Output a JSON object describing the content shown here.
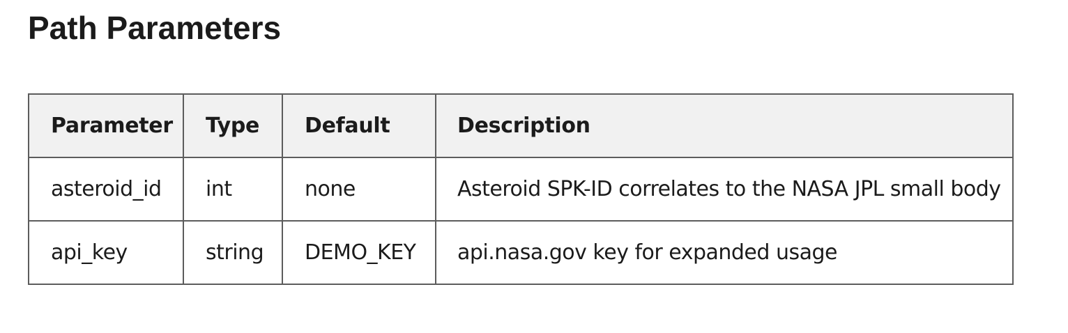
{
  "section": {
    "title": "Path Parameters"
  },
  "table": {
    "headers": [
      "Parameter",
      "Type",
      "Default",
      "Description"
    ],
    "rows": [
      [
        "asteroid_id",
        "int",
        "none",
        "Asteroid SPK-ID correlates to the NASA JPL small body"
      ],
      [
        "api_key",
        "string",
        "DEMO_KEY",
        "api.nasa.gov key for expanded usage"
      ]
    ]
  }
}
